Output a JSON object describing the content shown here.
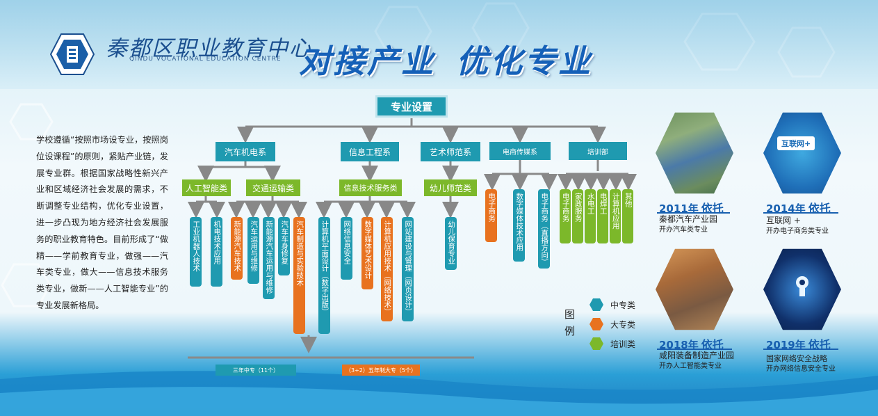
{
  "header": {
    "school_name": "秦都区职业教育中心",
    "school_name_en": "QINDU VOCATIONAL EDUCATION CENTRE",
    "title_part1": "对接产业",
    "title_part2": "优化专业"
  },
  "intro": "学校遵循“按照市场设专业，按照岗位设课程”的原则，紧贴产业链，发展专业群。根据国家战略性新兴产业和区域经济社会发展的需求，不断调整专业结构，优化专业设置，进一步凸现为地方经济社会发展服务的职业教育特色。目前形成了“做精——学前教育专业，做强——汽车类专业，做大——信息技术服务类专业，做新——人工智能专业”的专业发展新格局。",
  "tree": {
    "root": "专业设置",
    "departments": [
      "汽车机电系",
      "信息工程系",
      "艺术师范系",
      "电商传媒系",
      "培训部"
    ],
    "subcats": [
      "人工智能类",
      "交通运输类",
      "信息技术服务类",
      "幼儿师范类"
    ],
    "majors": [
      {
        "label": "工业机器人技术",
        "type": "中专类"
      },
      {
        "label": "机电技术应用",
        "type": "中专类"
      },
      {
        "label": "新能源汽车技术",
        "type": "大专类"
      },
      {
        "label": "汽车运用与维修",
        "type": "中专类"
      },
      {
        "label": "新能源汽车运用与维修",
        "type": "中专类"
      },
      {
        "label": "汽车车身修复",
        "type": "中专类"
      },
      {
        "label": "汽车制造与实验技术",
        "type": "大专类"
      },
      {
        "label": "计算机平面设计（数字出版）",
        "type": "中专类"
      },
      {
        "label": "网络信息安全",
        "type": "中专类"
      },
      {
        "label": "数字媒体艺术设计",
        "type": "大专类"
      },
      {
        "label": "计算机应用技术（网络技术）",
        "type": "大专类"
      },
      {
        "label": "网站建设与管理（网页设计）",
        "type": "中专类"
      },
      {
        "label": "幼儿保育专业",
        "type": "中专类"
      },
      {
        "label": "电子商务",
        "type": "大专类"
      },
      {
        "label": "数字媒体技术应用",
        "type": "中专类"
      },
      {
        "label": "电子商务（直播方向）",
        "type": "中专类"
      },
      {
        "label": "电子商务",
        "type": "培训类"
      },
      {
        "label": "家政服务",
        "type": "培训类"
      },
      {
        "label": "水电工",
        "type": "培训类"
      },
      {
        "label": "电焊工",
        "type": "培训类"
      },
      {
        "label": "计算机应用",
        "type": "培训类"
      },
      {
        "label": "其他",
        "type": "培训类"
      }
    ],
    "footer_secondary": "三年中专（11个）",
    "footer_college": "（3+2）五年制大专（5个）"
  },
  "legend": {
    "title": "图例",
    "items": [
      {
        "label": "中专类",
        "color": "#1f9ab0"
      },
      {
        "label": "大专类",
        "color": "#e8721f"
      },
      {
        "label": "培训类",
        "color": "#7cb82a"
      }
    ]
  },
  "milestones": [
    {
      "year": "2011年",
      "verb": "依托",
      "line1": "秦都汽车产业园",
      "line2": "开办汽车类专业"
    },
    {
      "year": "2014年",
      "verb": "依托",
      "line1": "互联网 +",
      "line2": "开办电子商务类专业",
      "badge": "互联网+"
    },
    {
      "year": "2018年",
      "verb": "依托",
      "line1": "咸阳装备制造产业园",
      "line2": "开办人工智能类专业"
    },
    {
      "year": "2019年",
      "verb": "依托",
      "line1": "国家网络安全战略",
      "line2": "开办网络信息安全专业"
    }
  ]
}
